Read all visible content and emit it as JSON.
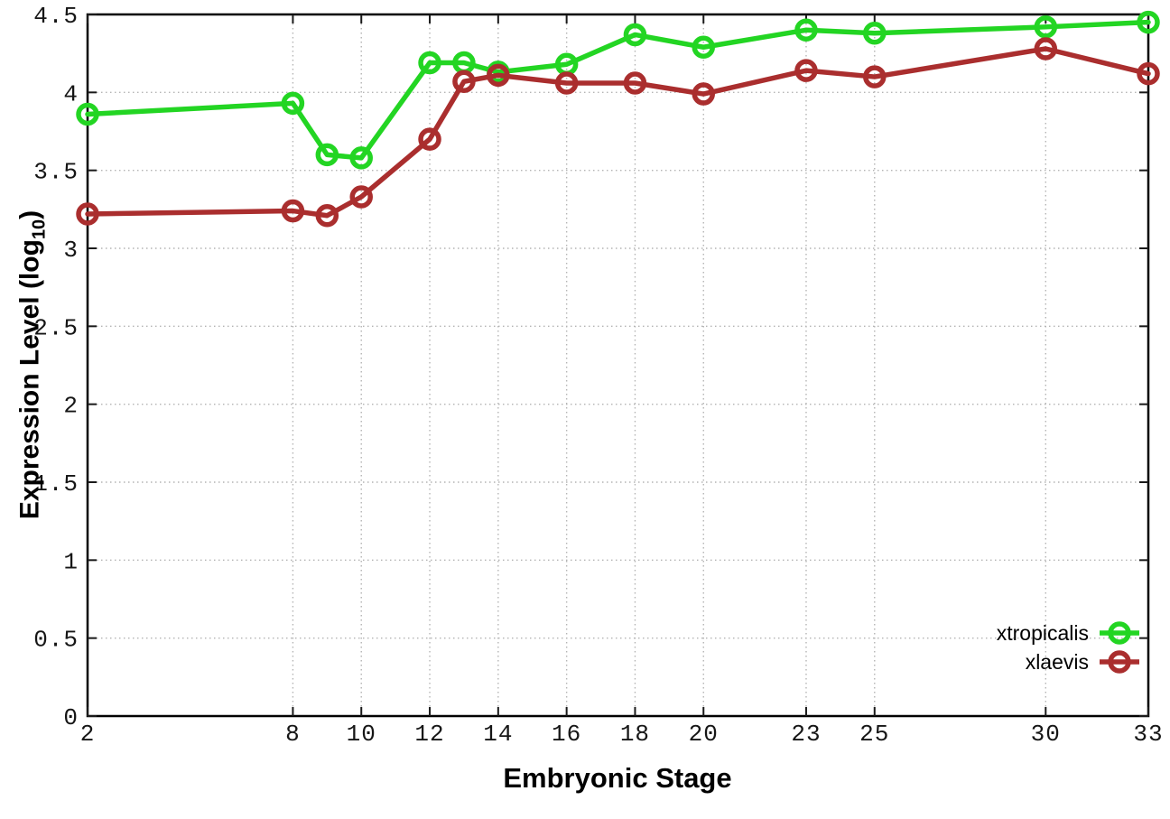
{
  "figure": {
    "background": "#ffffff",
    "frame_color": "#000000",
    "grid_color": "#b4b4b4"
  },
  "chart_data": {
    "type": "line",
    "title": "",
    "xlabel": "Embryonic Stage",
    "ylabel": "Expression Level (log10)",
    "ylabel_parts": {
      "prefix": "Expression Level (log",
      "sub": "10",
      "suffix": ")"
    },
    "x": [
      2,
      8,
      9,
      10,
      12,
      13,
      14,
      16,
      18,
      20,
      23,
      25,
      30,
      33
    ],
    "xticks": [
      2,
      8,
      10,
      12,
      14,
      16,
      18,
      20,
      23,
      25,
      30,
      33
    ],
    "yticks": [
      0,
      0.5,
      1,
      1.5,
      2,
      2.5,
      3,
      3.5,
      4,
      4.5
    ],
    "xlim": [
      2,
      33
    ],
    "ylim": [
      0,
      4.5
    ],
    "grid": true,
    "marker": "open-circle",
    "legend_position": "bottom-right-inside",
    "series": [
      {
        "name": "xtropicalis",
        "color": "#23d523",
        "values": [
          3.86,
          3.93,
          3.6,
          3.58,
          4.19,
          4.19,
          4.13,
          4.18,
          4.37,
          4.29,
          4.4,
          4.38,
          4.42,
          4.45
        ]
      },
      {
        "name": "xlaevis",
        "color": "#aa2e2e",
        "values": [
          3.22,
          3.24,
          3.21,
          3.33,
          3.7,
          4.07,
          4.11,
          4.06,
          4.06,
          3.99,
          4.14,
          4.1,
          4.28,
          4.12
        ]
      }
    ]
  }
}
